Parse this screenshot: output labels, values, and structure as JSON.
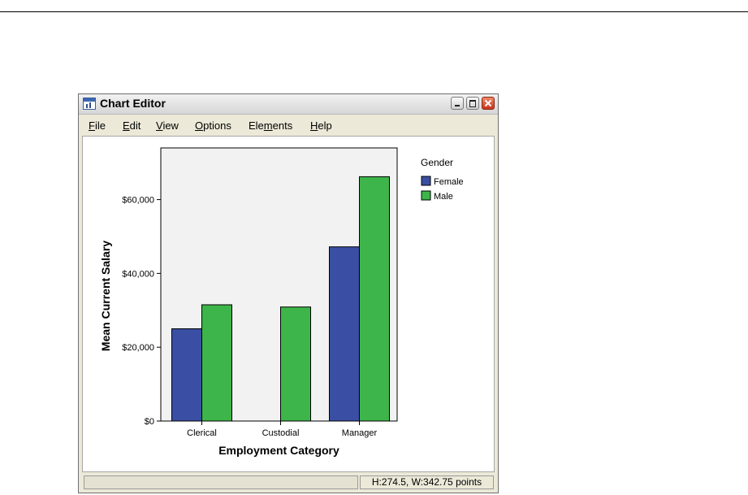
{
  "window": {
    "title": "Chart Editor",
    "icon": "chart-editor-icon"
  },
  "menu": [
    {
      "label": "File",
      "ul": "F",
      "rest": "ile"
    },
    {
      "label": "Edit",
      "ul": "E",
      "rest": "dit"
    },
    {
      "label": "View",
      "ul": "V",
      "rest": "iew"
    },
    {
      "label": "Options",
      "ul": "O",
      "rest": "ptions"
    },
    {
      "label": "Elements",
      "pre": "Ele",
      "ul": "m",
      "rest": "ents"
    },
    {
      "label": "Help",
      "ul": "H",
      "rest": "elp"
    }
  ],
  "status": {
    "left": "",
    "dimensions": "H:274.5, W:342.75 points"
  },
  "colors": {
    "female": "#3a4fa3",
    "male": "#3db54a",
    "plot_bg": "#f2f2f2"
  },
  "chart_data": {
    "type": "bar",
    "categories": [
      "Clerical",
      "Custodial",
      "Manager"
    ],
    "series": [
      {
        "name": "Female",
        "values": [
          25000,
          null,
          47200
        ]
      },
      {
        "name": "Male",
        "values": [
          31500,
          30900,
          66200
        ]
      }
    ],
    "xlabel": "Employment Category",
    "ylabel": "Mean Current Salary",
    "ylim": [
      0,
      74000
    ],
    "yticks": [
      0,
      20000,
      40000,
      60000
    ],
    "ytick_labels": [
      "$0",
      "$20,000",
      "$40,000",
      "$60,000"
    ],
    "legend": {
      "title": "Gender",
      "placement": "right"
    },
    "grid": false
  }
}
